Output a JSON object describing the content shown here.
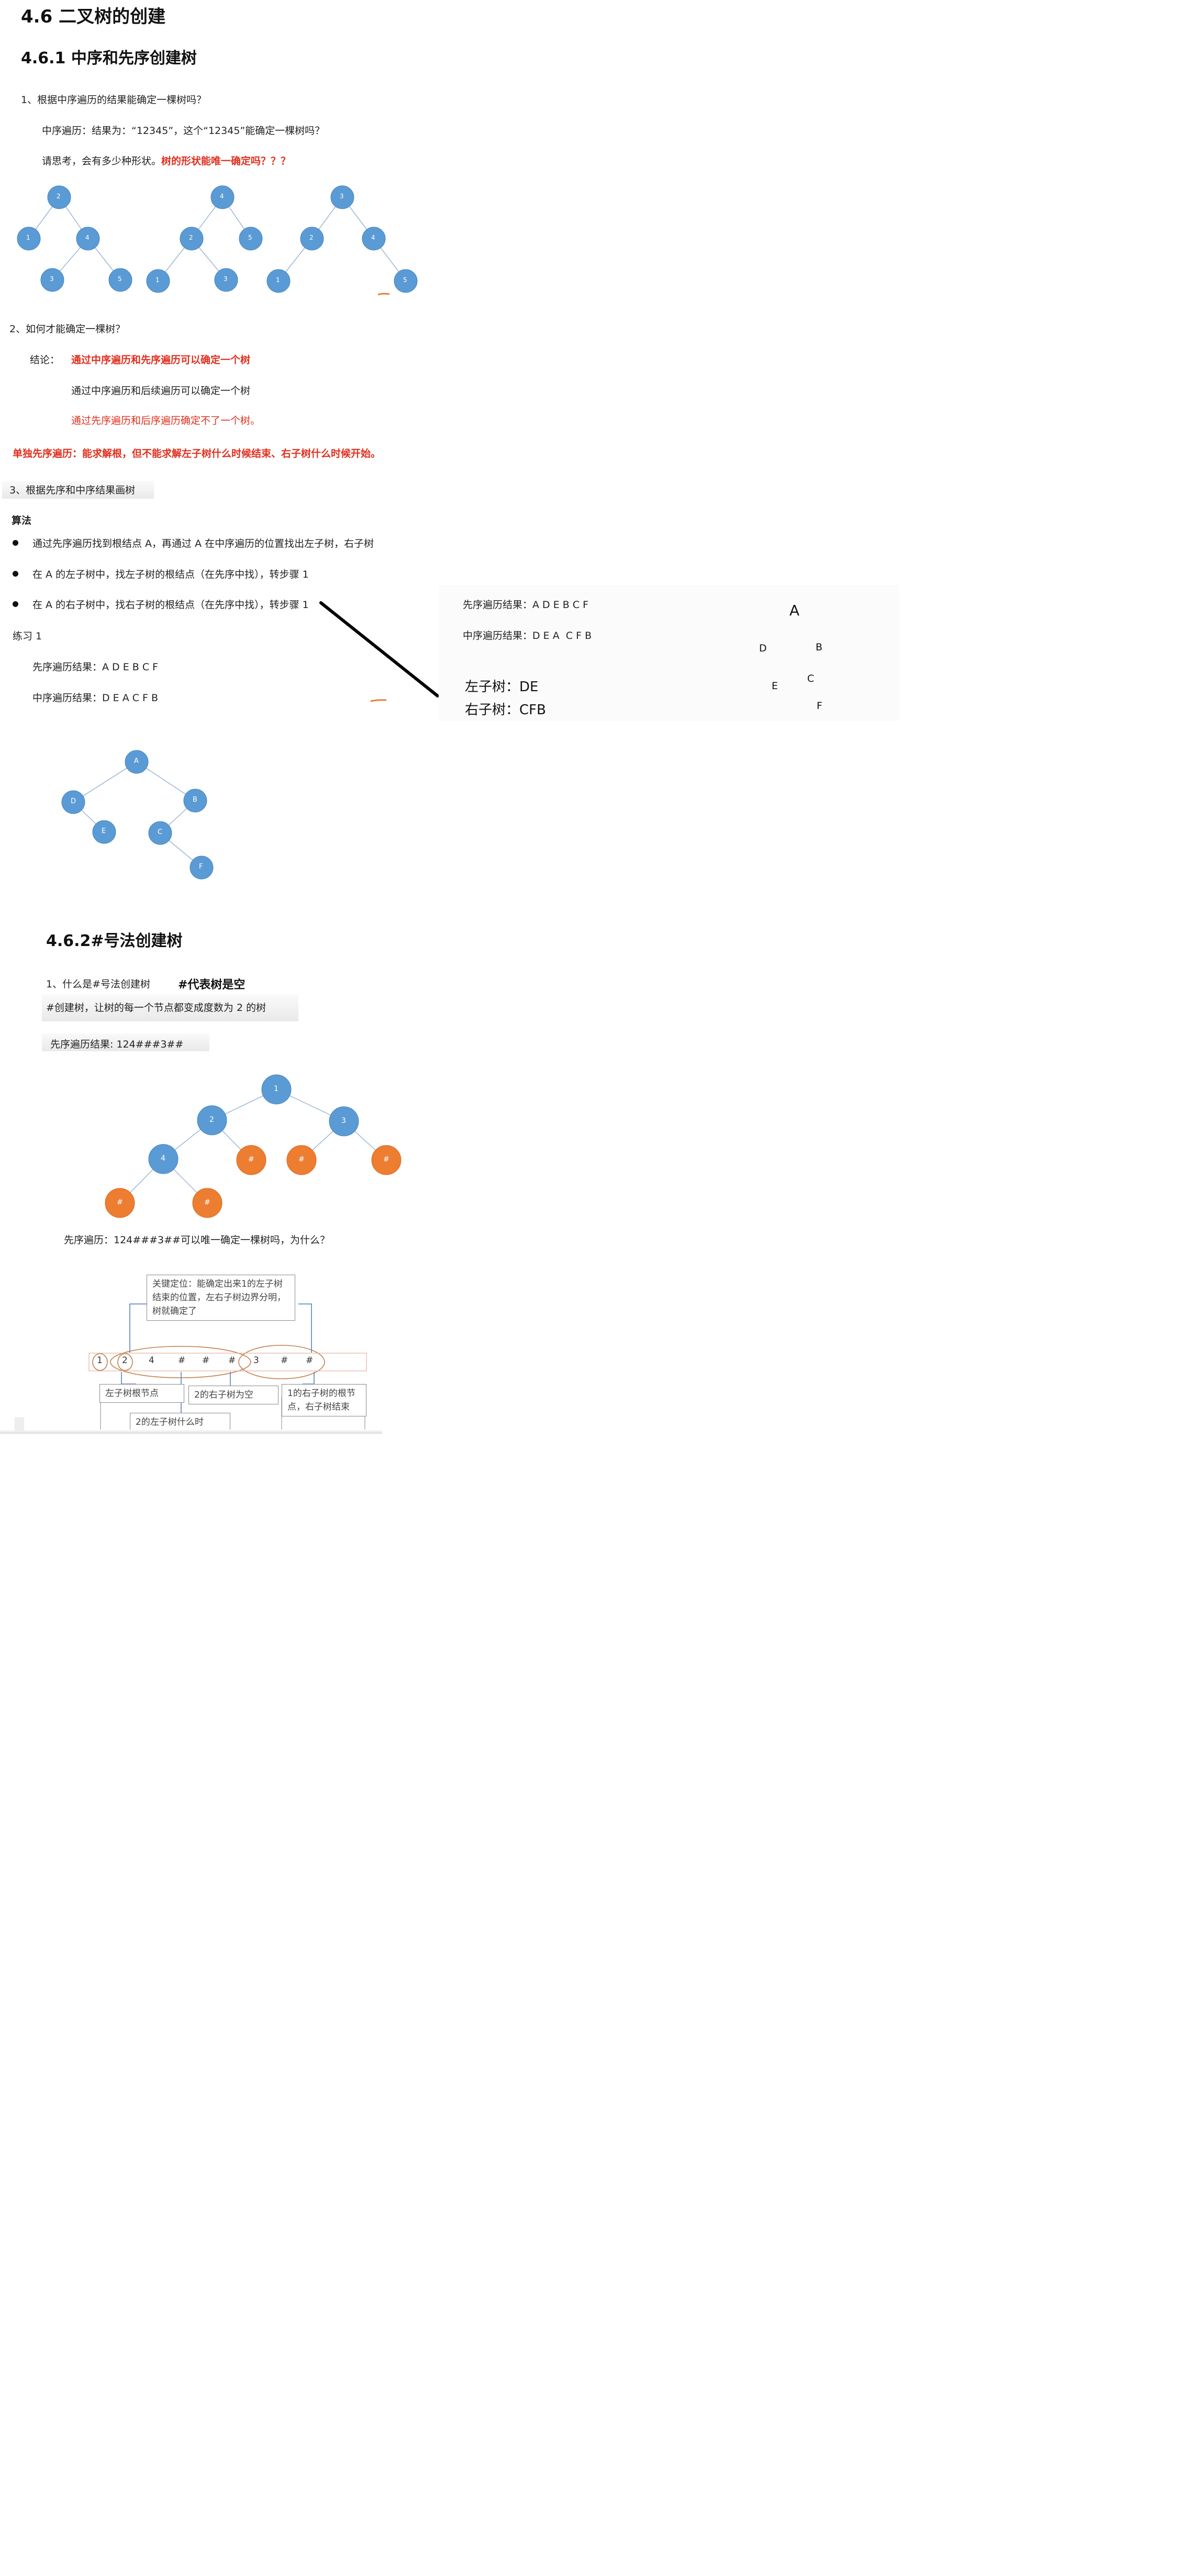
{
  "heading_main": "4.6 二叉树的创建",
  "heading_461": "4.6.1 中序和先序创建树",
  "q1": "1、根据中序遍历的结果能确定一棵树吗？",
  "q1_line": "中序遍历：结果为：“12345”，这个“12345”能确定一棵树吗？",
  "think_prefix": "请思考，会有多少种形状。",
  "think_red": "树的形状能唯一确定吗？？？",
  "trees_top": [
    {
      "nodes": [
        "2",
        "1",
        "4",
        "3",
        "5"
      ]
    },
    {
      "nodes": [
        "4",
        "2",
        "5",
        "1",
        "3"
      ]
    },
    {
      "nodes": [
        "3",
        "2",
        "4",
        "1",
        "5"
      ]
    }
  ],
  "q2": "2、如何才能确定一棵树？",
  "conclusion_label": "结论：",
  "conclusion_1": "通过中序遍历和先序遍历可以确定一个树",
  "conclusion_2": "通过中序遍历和后续遍历可以确定一个树",
  "conclusion_3": "通过先序遍历和后序遍历确定不了一个树。",
  "warning": "单独先序遍历：能求解根，但不能求解左子树什么时候结束、右子树什么时候开始。",
  "q3": "3、根据先序和中序结果画树",
  "algo_title": "算法",
  "algo_steps": [
    "通过先序遍历找到根结点 A，再通过 A 在中序遍历的位置找出左子树，右子树",
    "在 A 的左子树中，找左子树的根结点（在先序中找），转步骤 1",
    "在 A 的右子树中，找右子树的根结点（在先序中找），转步骤 1"
  ],
  "exercise_title": "练习 1",
  "exercise_pre": "先序遍历结果：A   D   E   B   C   F",
  "exercise_in": "中序遍历结果：D   E   A   C   F   B",
  "panel": {
    "pre_label": "先序遍历结果：",
    "pre_seq": "A  D  E  B  C  F",
    "in_label": "中序遍历结果：",
    "in_left": "D  E  A",
    "in_right": "C  F  B",
    "left_tree": "左子树：DE",
    "right_tree": "右子树：CFB",
    "sketch_nodes": [
      "A",
      "D",
      "B",
      "E",
      "C",
      "F"
    ]
  },
  "tree_ex_nodes": [
    "A",
    "D",
    "B",
    "E",
    "C",
    "F"
  ],
  "heading_462": "4.6.2#号法创建树",
  "hash_q": "1、什么是#号法创建树",
  "hash_note": "#代表树是空",
  "hash_desc": "#创建树，让树的每一个节点都变成度数为 2 的树",
  "hash_pre": "先序遍历结果: 124###3##",
  "hash_tree_nodes": [
    "1",
    "2",
    "3",
    "4",
    "#",
    "#",
    "#",
    "#"
  ],
  "hash_question": "先序遍历：124###3##可以唯一确定一棵树吗，为什么？",
  "diagram": {
    "top_note": "关键定位：能确定出来1的左子树结束的位置，左右子树边界分明，树就确定了",
    "sequence": [
      "1",
      "2",
      "4",
      "#",
      "#",
      "#",
      "3",
      "#",
      "#"
    ],
    "label_left_root": "左子树根节点",
    "label_right_empty": "2的右子树为空",
    "label_right_root": "1的右子树的根节点，右子树结束",
    "label_left_what": "2的左子树什么时"
  },
  "colors": {
    "node_blue": "#5b9bd5",
    "node_orange": "#ed7d31",
    "red_text": "#e0301e"
  }
}
